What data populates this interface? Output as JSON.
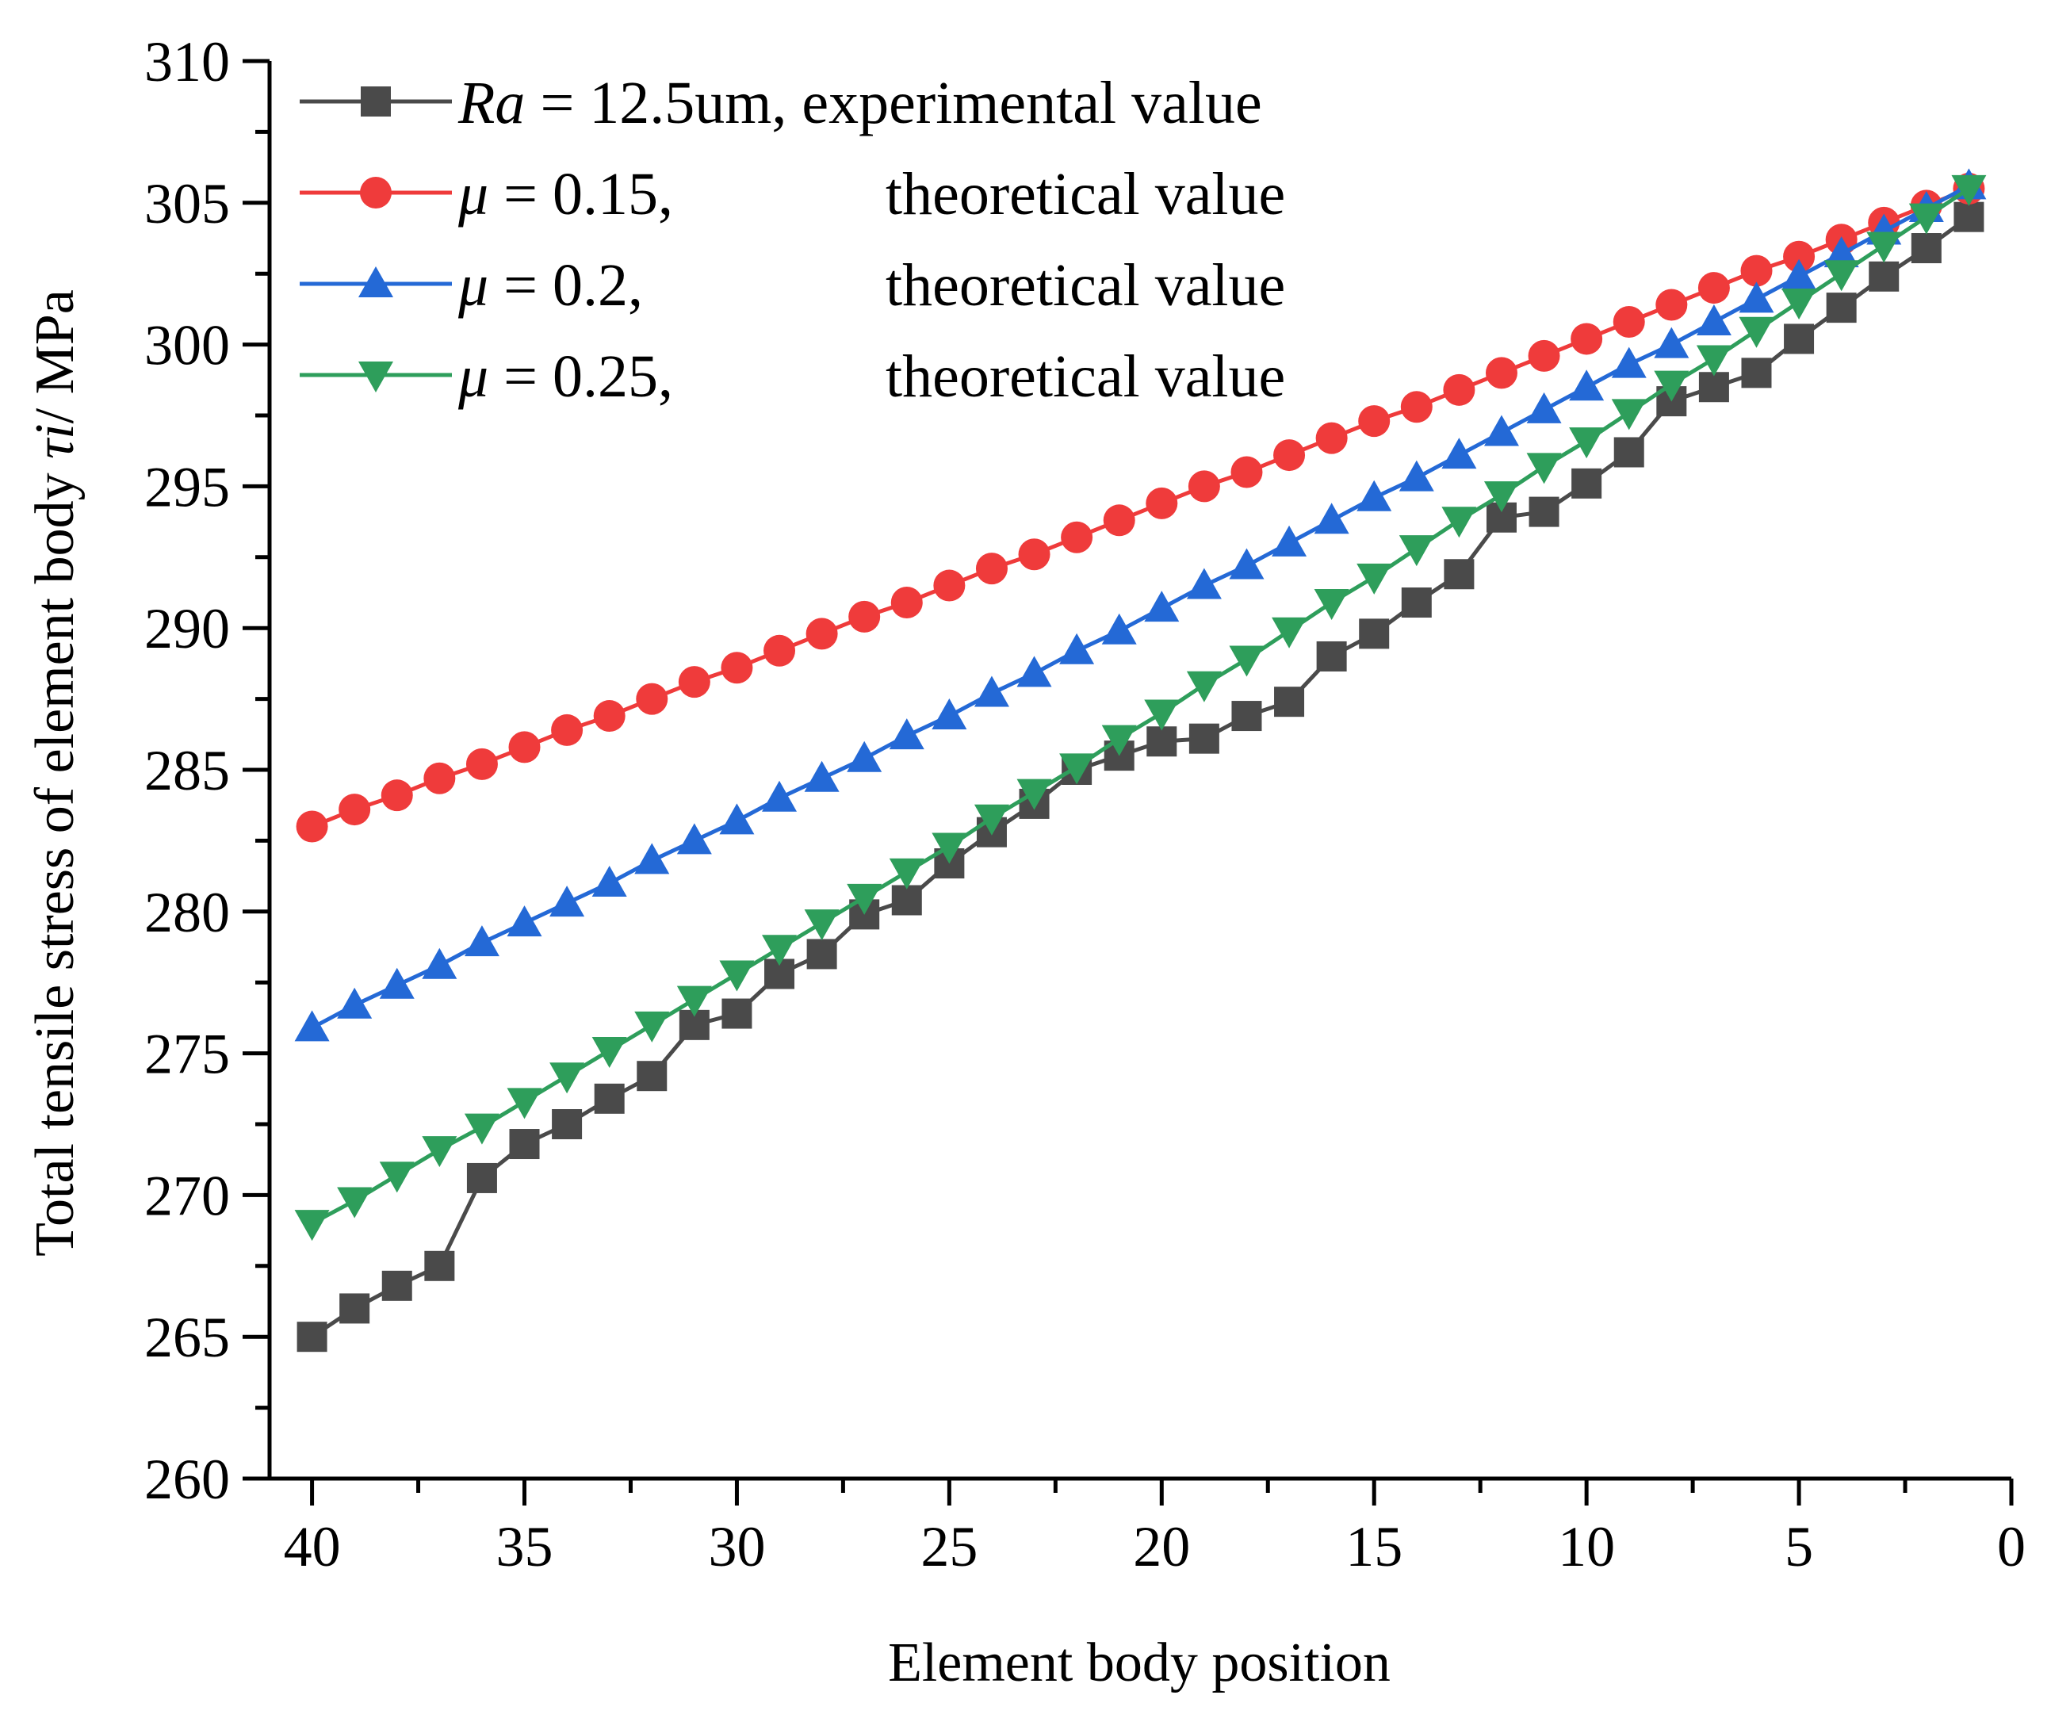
{
  "chart_data": {
    "type": "line",
    "xlabel": "Element body position",
    "ylabel_prefix": "Total tensile stress of element body ",
    "ylabel_symbol": "τi",
    "ylabel_suffix": "/ MPa",
    "xlim": [
      41,
      0
    ],
    "ylim": [
      260,
      310
    ],
    "x_ticks": [
      40,
      35,
      30,
      25,
      20,
      15,
      10,
      5,
      0
    ],
    "y_ticks": [
      260,
      265,
      270,
      275,
      280,
      285,
      290,
      295,
      300,
      305,
      310
    ],
    "grid": false,
    "legend_position": "top-left",
    "x": [
      40,
      39,
      38,
      37,
      36,
      35,
      34,
      33,
      32,
      31,
      30,
      29,
      28,
      27,
      26,
      25,
      24,
      23,
      22,
      21,
      20,
      19,
      18,
      17,
      16,
      15,
      14,
      13,
      12,
      11,
      10,
      9,
      8,
      7,
      6,
      5,
      4,
      3,
      2,
      1
    ],
    "series": [
      {
        "legend_italic": "Ra",
        "legend_rest": " = 12.5um, experimental value",
        "legend_desc": "",
        "marker": "square",
        "color": "#4a4a4a",
        "values": [
          265.0,
          266.0,
          266.8,
          267.5,
          270.6,
          271.8,
          272.5,
          273.4,
          274.2,
          276.0,
          276.4,
          277.8,
          278.5,
          279.9,
          280.4,
          281.7,
          282.8,
          283.8,
          285.0,
          285.5,
          286.0,
          286.1,
          286.9,
          287.4,
          289.0,
          289.8,
          290.9,
          291.9,
          293.9,
          294.1,
          295.1,
          296.2,
          298.0,
          298.5,
          299.0,
          300.2,
          301.3,
          302.4,
          303.4,
          304.5
        ]
      },
      {
        "legend_italic": "μ",
        "legend_rest": " = 0.15,",
        "legend_desc": "theoretical value",
        "marker": "circle",
        "color": "#ef3b3b",
        "values": [
          283.0,
          283.6,
          284.1,
          284.7,
          285.2,
          285.8,
          286.4,
          286.9,
          287.5,
          288.1,
          288.6,
          289.2,
          289.8,
          290.4,
          290.9,
          291.5,
          292.1,
          292.6,
          293.2,
          293.8,
          294.4,
          295.0,
          295.5,
          296.1,
          296.7,
          297.3,
          297.8,
          298.4,
          299.0,
          299.6,
          300.2,
          300.8,
          301.4,
          302.0,
          302.6,
          303.1,
          303.7,
          304.3,
          304.9,
          305.5
        ]
      },
      {
        "legend_italic": "μ",
        "legend_rest": " = 0.2,",
        "legend_desc": "theoretical value",
        "marker": "triangle-up",
        "color": "#2469d6",
        "values": [
          275.9,
          276.7,
          277.4,
          278.1,
          278.9,
          279.6,
          280.3,
          281.0,
          281.8,
          282.5,
          283.2,
          284.0,
          284.7,
          285.4,
          286.2,
          286.9,
          287.7,
          288.4,
          289.2,
          289.9,
          290.7,
          291.5,
          292.2,
          293.0,
          293.8,
          294.6,
          295.3,
          296.1,
          296.9,
          297.7,
          298.5,
          299.3,
          300.0,
          300.8,
          301.6,
          302.4,
          303.2,
          304.0,
          304.8,
          305.6
        ]
      },
      {
        "legend_italic": "μ",
        "legend_rest": " = 0.25,",
        "legend_desc": "theoretical value",
        "marker": "triangle-down",
        "color": "#2e9e5b",
        "values": [
          269.0,
          269.8,
          270.7,
          271.6,
          272.4,
          273.3,
          274.2,
          275.1,
          276.0,
          276.9,
          277.8,
          278.7,
          279.6,
          280.5,
          281.4,
          282.3,
          283.3,
          284.2,
          285.1,
          286.1,
          287.0,
          288.0,
          288.9,
          289.9,
          290.9,
          291.8,
          292.8,
          293.8,
          294.7,
          295.7,
          296.6,
          297.6,
          298.6,
          299.5,
          300.5,
          301.5,
          302.5,
          303.5,
          304.5,
          305.5
        ]
      }
    ]
  }
}
